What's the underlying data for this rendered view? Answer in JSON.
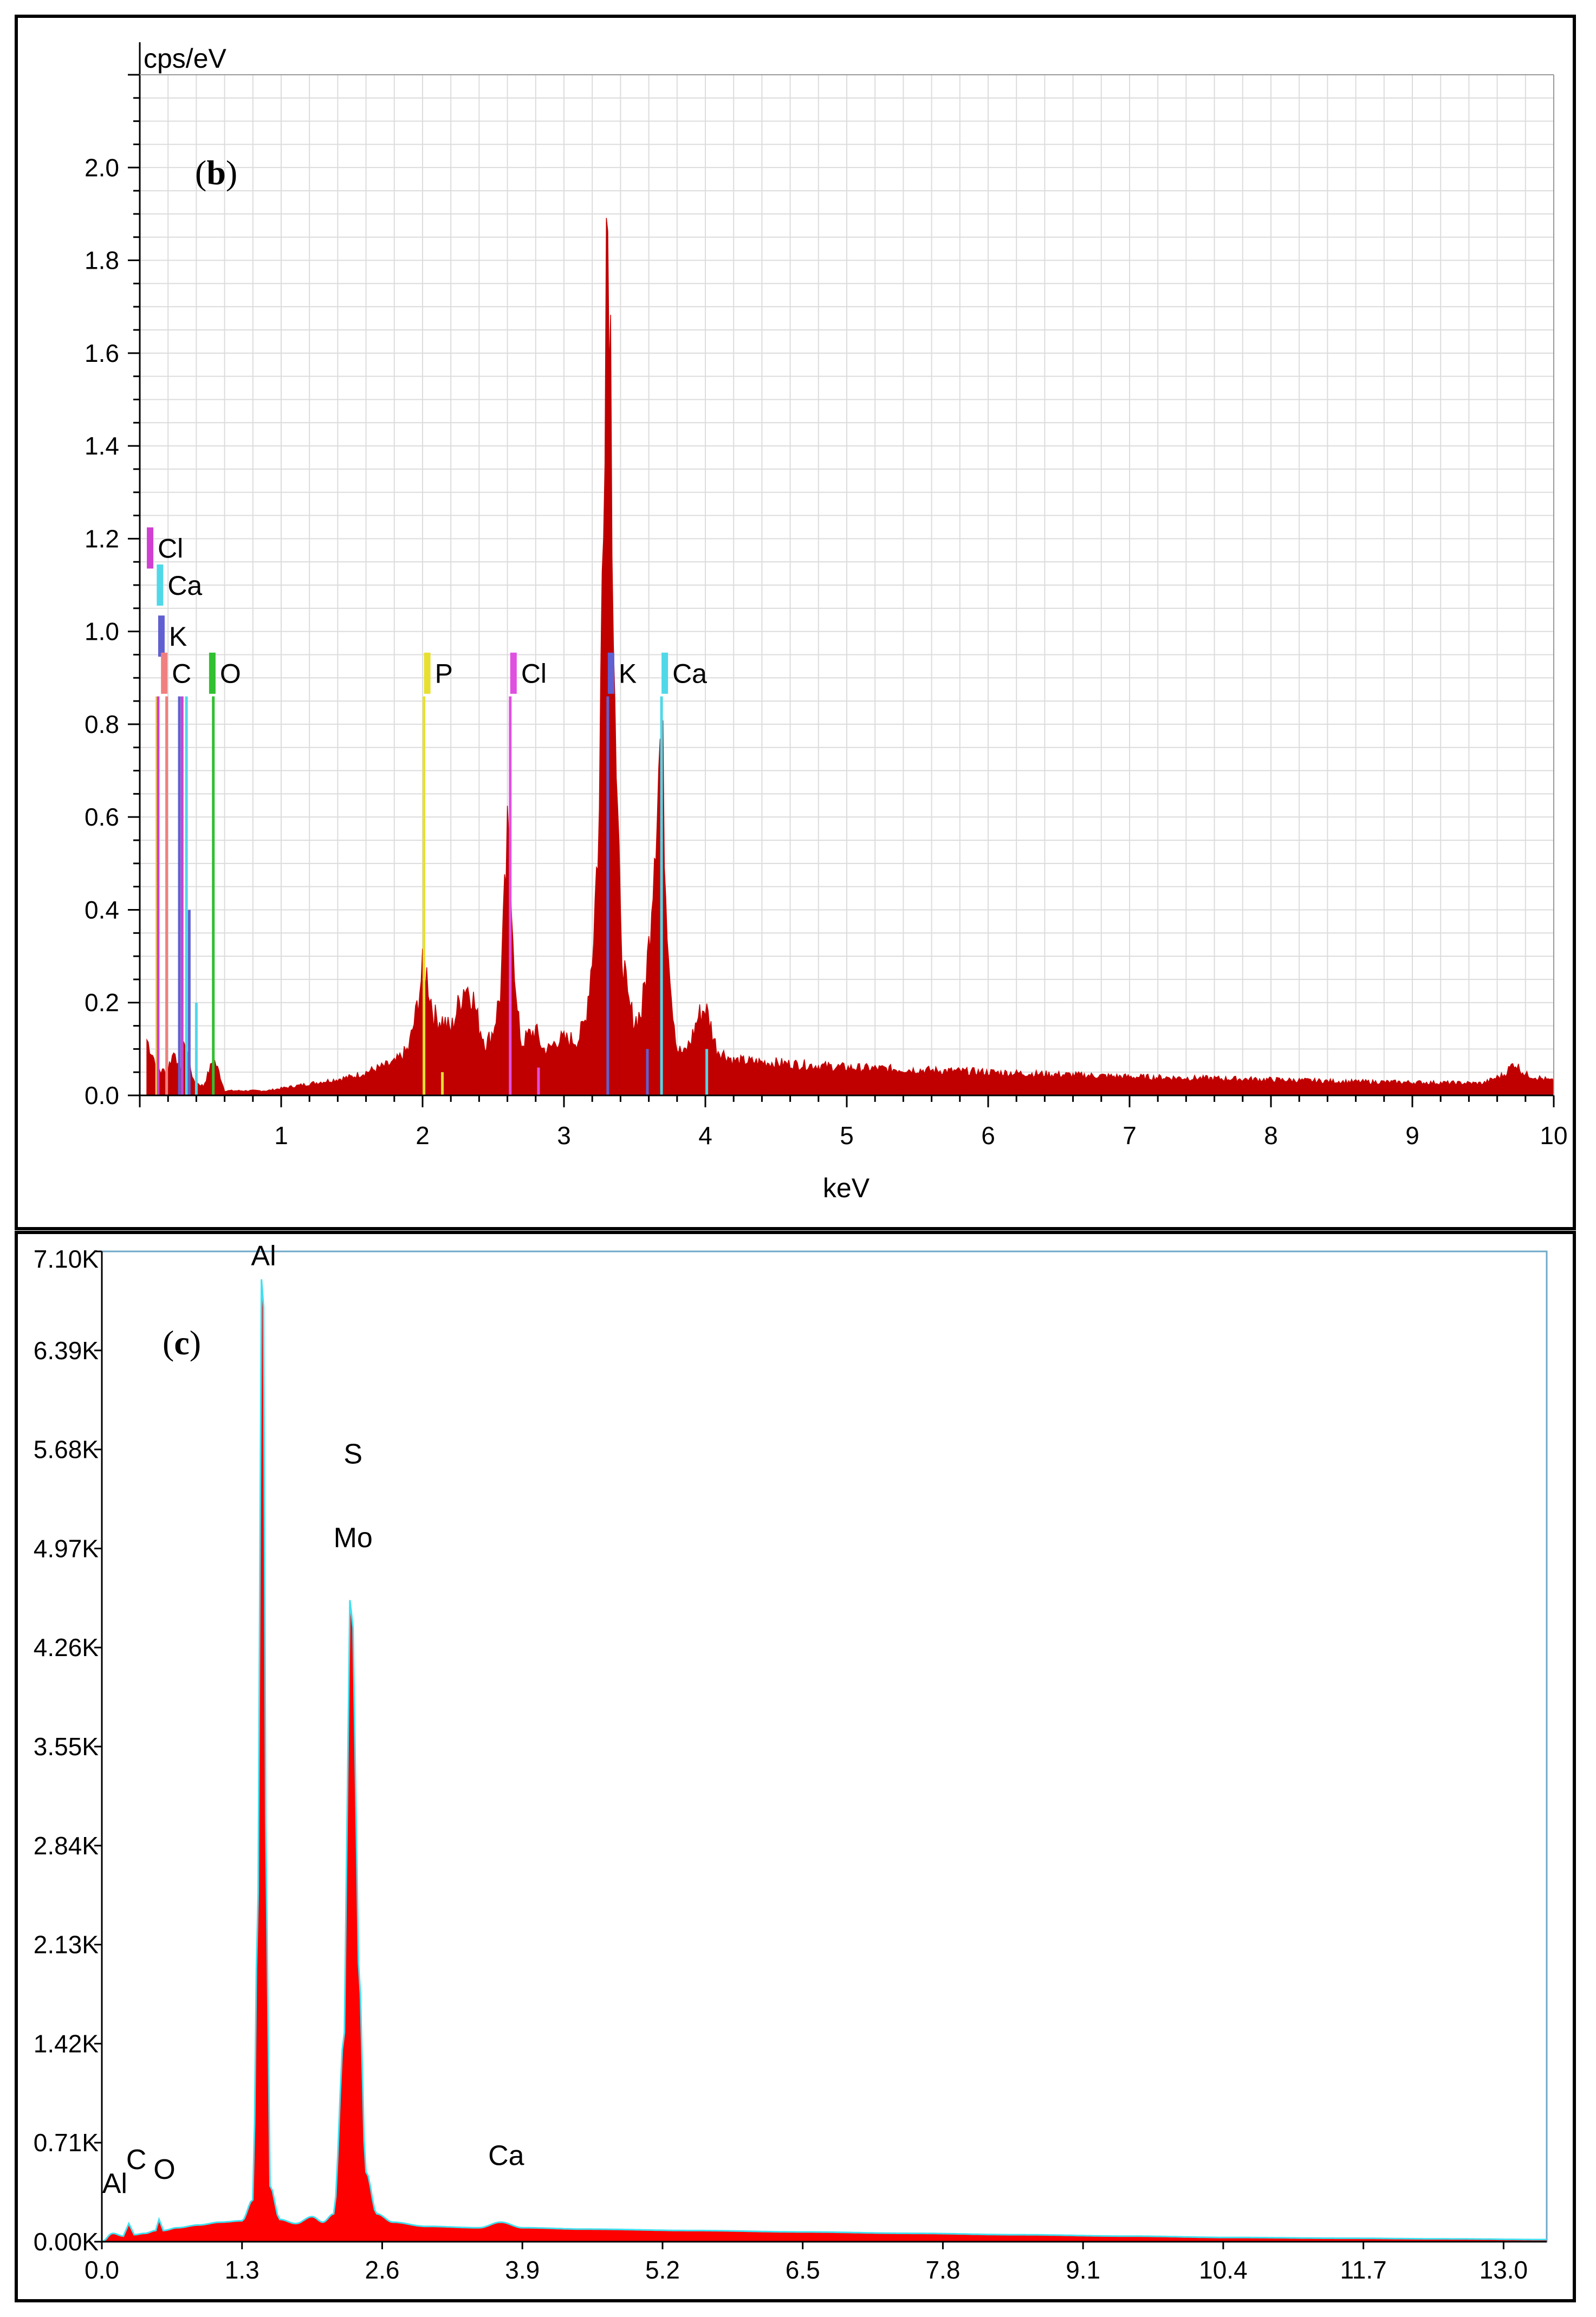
{
  "chart_data": [
    {
      "panel": "(b)",
      "type": "area",
      "ylabel": "cps/eV",
      "xlabel": "keV",
      "xlim": [
        0,
        10
      ],
      "ylim": [
        0,
        2.2
      ],
      "x_ticks": [
        1,
        2,
        3,
        4,
        5,
        6,
        7,
        8,
        9,
        10
      ],
      "y_ticks": [
        0.0,
        0.2,
        0.4,
        0.6,
        0.8,
        1.0,
        1.2,
        1.4,
        1.6,
        1.8,
        2.0
      ],
      "y_tick_labels": [
        "0.0",
        "0.2",
        "0.4",
        "0.6",
        "0.8",
        "1.0",
        "1.2",
        "1.4",
        "1.6",
        "1.8",
        "2.0"
      ],
      "grid": true,
      "fill_color": "#c00000",
      "spectrum": [
        [
          0.05,
          0.12
        ],
        [
          0.1,
          0.08
        ],
        [
          0.15,
          0.05
        ],
        [
          0.2,
          0.06
        ],
        [
          0.25,
          0.1
        ],
        [
          0.28,
          0.04
        ],
        [
          0.32,
          0.12
        ],
        [
          0.38,
          0.03
        ],
        [
          0.45,
          0.02
        ],
        [
          0.5,
          0.06
        ],
        [
          0.52,
          0.08
        ],
        [
          0.56,
          0.05
        ],
        [
          0.6,
          0.01
        ],
        [
          0.7,
          0.01
        ],
        [
          0.8,
          0.01
        ],
        [
          0.9,
          0.01
        ],
        [
          1.0,
          0.015
        ],
        [
          1.1,
          0.02
        ],
        [
          1.2,
          0.025
        ],
        [
          1.3,
          0.03
        ],
        [
          1.4,
          0.035
        ],
        [
          1.5,
          0.04
        ],
        [
          1.6,
          0.05
        ],
        [
          1.7,
          0.06
        ],
        [
          1.8,
          0.07
        ],
        [
          1.9,
          0.1
        ],
        [
          1.95,
          0.17
        ],
        [
          2.0,
          0.27
        ],
        [
          2.03,
          0.26
        ],
        [
          2.08,
          0.17
        ],
        [
          2.15,
          0.16
        ],
        [
          2.2,
          0.14
        ],
        [
          2.25,
          0.19
        ],
        [
          2.3,
          0.24
        ],
        [
          2.35,
          0.22
        ],
        [
          2.4,
          0.15
        ],
        [
          2.45,
          0.11
        ],
        [
          2.5,
          0.14
        ],
        [
          2.55,
          0.22
        ],
        [
          2.6,
          0.54
        ],
        [
          2.63,
          0.45
        ],
        [
          2.66,
          0.2
        ],
        [
          2.7,
          0.11
        ],
        [
          2.75,
          0.13
        ],
        [
          2.8,
          0.14
        ],
        [
          2.85,
          0.1
        ],
        [
          2.9,
          0.1
        ],
        [
          2.95,
          0.12
        ],
        [
          3.0,
          0.12
        ],
        [
          3.1,
          0.12
        ],
        [
          3.15,
          0.16
        ],
        [
          3.2,
          0.3
        ],
        [
          3.25,
          0.6
        ],
        [
          3.28,
          1.4
        ],
        [
          3.3,
          1.9
        ],
        [
          3.32,
          1.88
        ],
        [
          3.34,
          1.35
        ],
        [
          3.37,
          0.7
        ],
        [
          3.4,
          0.35
        ],
        [
          3.45,
          0.2
        ],
        [
          3.5,
          0.16
        ],
        [
          3.55,
          0.18
        ],
        [
          3.6,
          0.32
        ],
        [
          3.65,
          0.6
        ],
        [
          3.68,
          0.76
        ],
        [
          3.7,
          0.7
        ],
        [
          3.72,
          0.45
        ],
        [
          3.76,
          0.22
        ],
        [
          3.8,
          0.1
        ],
        [
          3.85,
          0.09
        ],
        [
          3.9,
          0.12
        ],
        [
          3.95,
          0.17
        ],
        [
          4.0,
          0.19
        ],
        [
          4.03,
          0.16
        ],
        [
          4.08,
          0.1
        ],
        [
          4.2,
          0.075
        ],
        [
          4.5,
          0.07
        ],
        [
          5.0,
          0.06
        ],
        [
          5.5,
          0.055
        ],
        [
          6.0,
          0.05
        ],
        [
          6.5,
          0.045
        ],
        [
          7.0,
          0.04
        ],
        [
          7.5,
          0.037
        ],
        [
          8.0,
          0.034
        ],
        [
          8.5,
          0.03
        ],
        [
          9.0,
          0.028
        ],
        [
          9.5,
          0.026
        ],
        [
          9.65,
          0.045
        ],
        [
          9.72,
          0.07
        ],
        [
          9.8,
          0.045
        ],
        [
          10.0,
          0.03
        ]
      ],
      "markers": [
        {
          "label": "Cl",
          "x": 0.05,
          "color": "#d040d0",
          "label_y": 1.18
        },
        {
          "label": "Ca",
          "x": 0.12,
          "color": "#50d8e8",
          "label_y": 1.1
        },
        {
          "label": "K",
          "x": 0.13,
          "color": "#6060d0",
          "label_y": 0.99
        },
        {
          "label": "C",
          "x": 0.15,
          "color": "#f08080",
          "label_y": 0.91
        },
        {
          "label": "O",
          "x": 0.49,
          "color": "#30c030",
          "label_y": 0.91
        },
        {
          "label": "P",
          "x": 2.01,
          "color": "#e8e030",
          "label_y": 0.91
        },
        {
          "label": "Cl",
          "x": 2.62,
          "color": "#e050e0",
          "label_y": 0.91
        },
        {
          "label": "K",
          "x": 3.31,
          "color": "#6060d0",
          "label_y": 0.91
        },
        {
          "label": "Ca",
          "x": 3.69,
          "color": "#50d8e8",
          "label_y": 0.91
        }
      ],
      "marker_lines": [
        {
          "x": 0.12,
          "top": 0.86,
          "color": "#e8e030"
        },
        {
          "x": 0.13,
          "top": 0.86,
          "color": "#d040d0"
        },
        {
          "x": 0.19,
          "top": 0.86,
          "color": "#f08080"
        },
        {
          "x": 0.28,
          "top": 0.86,
          "color": "#6060d0"
        },
        {
          "x": 0.3,
          "top": 0.86,
          "color": "#d040d0"
        },
        {
          "x": 0.33,
          "top": 0.86,
          "color": "#50d8e8"
        },
        {
          "x": 0.35,
          "top": 0.4,
          "color": "#6060d0"
        },
        {
          "x": 0.4,
          "top": 0.2,
          "color": "#50d8e8"
        },
        {
          "x": 0.52,
          "top": 0.86,
          "color": "#30c030"
        },
        {
          "x": 2.01,
          "top": 0.86,
          "color": "#e8e030"
        },
        {
          "x": 2.14,
          "top": 0.05,
          "color": "#e8e030"
        },
        {
          "x": 2.62,
          "top": 0.86,
          "color": "#e050e0"
        },
        {
          "x": 2.82,
          "top": 0.06,
          "color": "#e050e0"
        },
        {
          "x": 3.31,
          "top": 0.86,
          "color": "#6060d0"
        },
        {
          "x": 3.59,
          "top": 0.1,
          "color": "#6060d0"
        },
        {
          "x": 3.69,
          "top": 0.86,
          "color": "#50d8e8"
        },
        {
          "x": 4.01,
          "top": 0.1,
          "color": "#50d8e8"
        }
      ]
    },
    {
      "panel": "(c)",
      "type": "area",
      "xlim": [
        0,
        13.4
      ],
      "ylim": [
        0,
        7.1
      ],
      "x_ticks": [
        0.0,
        1.3,
        2.6,
        3.9,
        5.2,
        6.5,
        7.8,
        9.1,
        10.4,
        11.7,
        13.0
      ],
      "x_tick_labels": [
        "0.0",
        "1.3",
        "2.6",
        "3.9",
        "5.2",
        "6.5",
        "7.8",
        "9.1",
        "10.4",
        "11.7",
        "13.0"
      ],
      "y_ticks": [
        0.0,
        0.71,
        1.42,
        2.13,
        2.84,
        3.55,
        4.26,
        4.97,
        5.68,
        6.39,
        7.1
      ],
      "y_tick_labels": [
        "0.00K",
        "0.71K",
        "1.42K",
        "2.13K",
        "2.84K",
        "3.55K",
        "4.26K",
        "4.97K",
        "5.68K",
        "6.39K",
        "7.10K"
      ],
      "fill_color": "#ff0000",
      "outline_color": "#40e0f0",
      "spectrum": [
        [
          0.0,
          0.0
        ],
        [
          0.1,
          0.06
        ],
        [
          0.2,
          0.04
        ],
        [
          0.25,
          0.13
        ],
        [
          0.3,
          0.05
        ],
        [
          0.4,
          0.06
        ],
        [
          0.5,
          0.08
        ],
        [
          0.53,
          0.16
        ],
        [
          0.57,
          0.08
        ],
        [
          0.7,
          0.1
        ],
        [
          0.9,
          0.12
        ],
        [
          1.1,
          0.14
        ],
        [
          1.3,
          0.15
        ],
        [
          1.4,
          0.3
        ],
        [
          1.45,
          2.5
        ],
        [
          1.48,
          6.9
        ],
        [
          1.5,
          6.7
        ],
        [
          1.52,
          3.0
        ],
        [
          1.56,
          0.4
        ],
        [
          1.65,
          0.16
        ],
        [
          1.8,
          0.13
        ],
        [
          1.95,
          0.18
        ],
        [
          2.05,
          0.14
        ],
        [
          2.15,
          0.2
        ],
        [
          2.25,
          1.5
        ],
        [
          2.3,
          4.6
        ],
        [
          2.33,
          4.4
        ],
        [
          2.38,
          2.0
        ],
        [
          2.45,
          0.5
        ],
        [
          2.55,
          0.2
        ],
        [
          2.7,
          0.14
        ],
        [
          3.0,
          0.11
        ],
        [
          3.5,
          0.1
        ],
        [
          3.7,
          0.14
        ],
        [
          3.9,
          0.1
        ],
        [
          4.5,
          0.09
        ],
        [
          5.5,
          0.08
        ],
        [
          6.5,
          0.07
        ],
        [
          7.5,
          0.06
        ],
        [
          8.5,
          0.05
        ],
        [
          9.5,
          0.04
        ],
        [
          10.5,
          0.03
        ],
        [
          11.5,
          0.025
        ],
        [
          12.5,
          0.02
        ],
        [
          13.4,
          0.015
        ]
      ],
      "peak_labels": [
        {
          "label": "Al",
          "x": 1.5,
          "y": 7.0
        },
        {
          "label": "S",
          "x": 2.33,
          "y": 5.58
        },
        {
          "label": "Mo",
          "x": 2.33,
          "y": 4.98
        },
        {
          "label": "Al",
          "x": 0.12,
          "y": 0.35
        },
        {
          "label": "C",
          "x": 0.32,
          "y": 0.52
        },
        {
          "label": "O",
          "x": 0.58,
          "y": 0.45
        },
        {
          "label": "Ca",
          "x": 3.75,
          "y": 0.55
        }
      ]
    }
  ]
}
